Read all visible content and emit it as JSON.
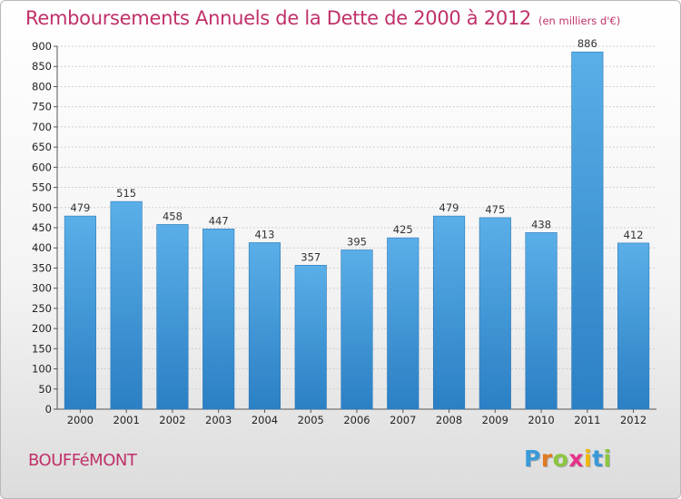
{
  "header": {
    "title": "Remboursements Annuels de la Dette de 2000 à 2012",
    "unit": "(en milliers d'€)"
  },
  "footer": {
    "commune": "BOUFFéMONT",
    "logo_letters": [
      "P",
      "r",
      "o",
      "x",
      "i",
      "t",
      "i"
    ],
    "logo_colors": [
      "#3a9ad9",
      "#e07a1f",
      "#8cc63f",
      "#e8318a",
      "#f2b705",
      "#3a9ad9",
      "#8cc63f"
    ]
  },
  "chart_data": {
    "type": "bar",
    "title": "Remboursements Annuels de la Dette de 2000 à 2012",
    "subtitle": "(en milliers d'€)",
    "categories": [
      "2000",
      "2001",
      "2002",
      "2003",
      "2004",
      "2005",
      "2006",
      "2007",
      "2008",
      "2009",
      "2010",
      "2011",
      "2012"
    ],
    "values": [
      479,
      515,
      458,
      447,
      413,
      357,
      395,
      425,
      479,
      475,
      438,
      886,
      412
    ],
    "ylim": [
      0,
      900
    ],
    "yticks": [
      0,
      50,
      100,
      150,
      200,
      250,
      300,
      350,
      400,
      450,
      500,
      550,
      600,
      650,
      700,
      750,
      800,
      850,
      900
    ],
    "grid": true,
    "legend": "none",
    "bar_color_top": "#5aafe8",
    "bar_color_bottom": "#2b7fc4"
  }
}
